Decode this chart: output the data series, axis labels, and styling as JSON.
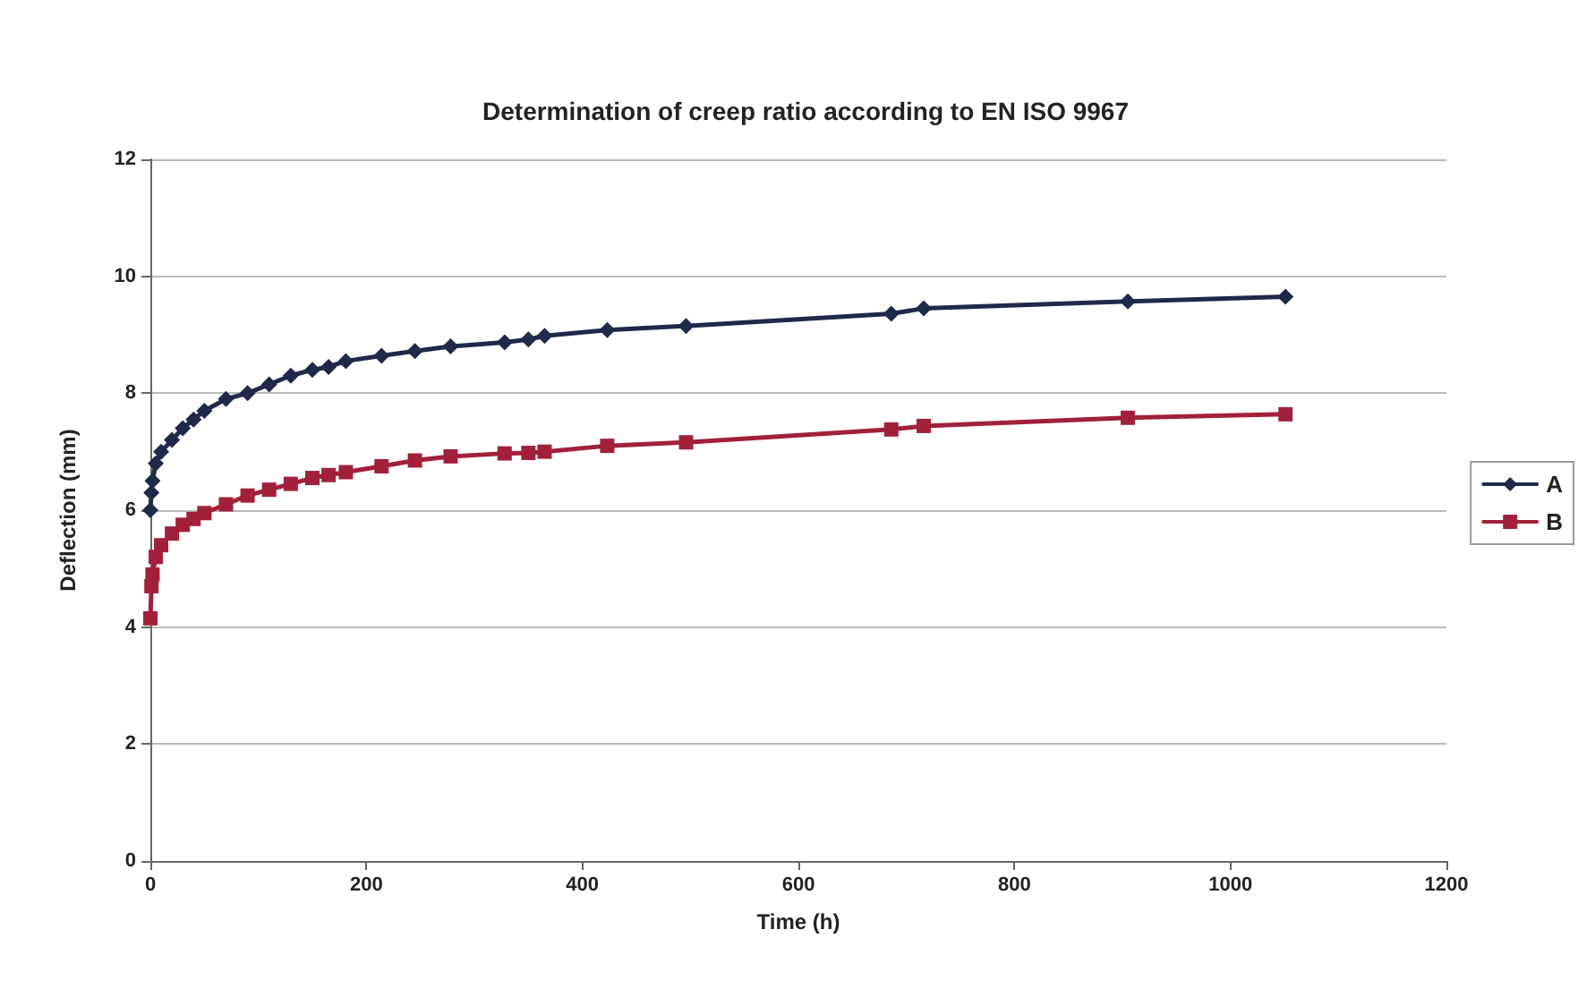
{
  "chart_data": {
    "type": "line",
    "title": "Determination of creep ratio according to EN ISO 9967",
    "xlabel": "Time (h)",
    "ylabel": "Deflection (mm)",
    "x": [
      0,
      1,
      2,
      5,
      10,
      20,
      30,
      40,
      50,
      70,
      90,
      110,
      130,
      150,
      165,
      181,
      214,
      245,
      278,
      328,
      350,
      365,
      423,
      496,
      686,
      716,
      905,
      1051
    ],
    "series": [
      {
        "name": "A",
        "color": "#1f2a4a",
        "marker": "diamond",
        "values": [
          6.0,
          6.3,
          6.5,
          6.8,
          7.0,
          7.2,
          7.4,
          7.55,
          7.7,
          7.9,
          8.0,
          8.15,
          8.3,
          8.4,
          8.45,
          8.55,
          8.64,
          8.72,
          8.8,
          8.87,
          8.92,
          8.98,
          9.08,
          9.15,
          9.36,
          9.45,
          9.57,
          9.65
        ]
      },
      {
        "name": "B",
        "color": "#a3203a",
        "marker": "square",
        "values": [
          4.15,
          4.7,
          4.9,
          5.2,
          5.4,
          5.6,
          5.75,
          5.85,
          5.95,
          6.1,
          6.25,
          6.35,
          6.45,
          6.55,
          6.6,
          6.65,
          6.75,
          6.85,
          6.92,
          6.97,
          6.98,
          7.0,
          7.1,
          7.16,
          7.38,
          7.44,
          7.58,
          7.64
        ]
      }
    ],
    "xlim": [
      0,
      1200
    ],
    "xticks": [
      0,
      200,
      400,
      600,
      800,
      1000,
      1200
    ],
    "ylim": [
      0,
      12
    ],
    "yticks": [
      0,
      2,
      4,
      6,
      8,
      10,
      12
    ],
    "grid": "y",
    "legend": "right",
    "line_style": "solid"
  }
}
